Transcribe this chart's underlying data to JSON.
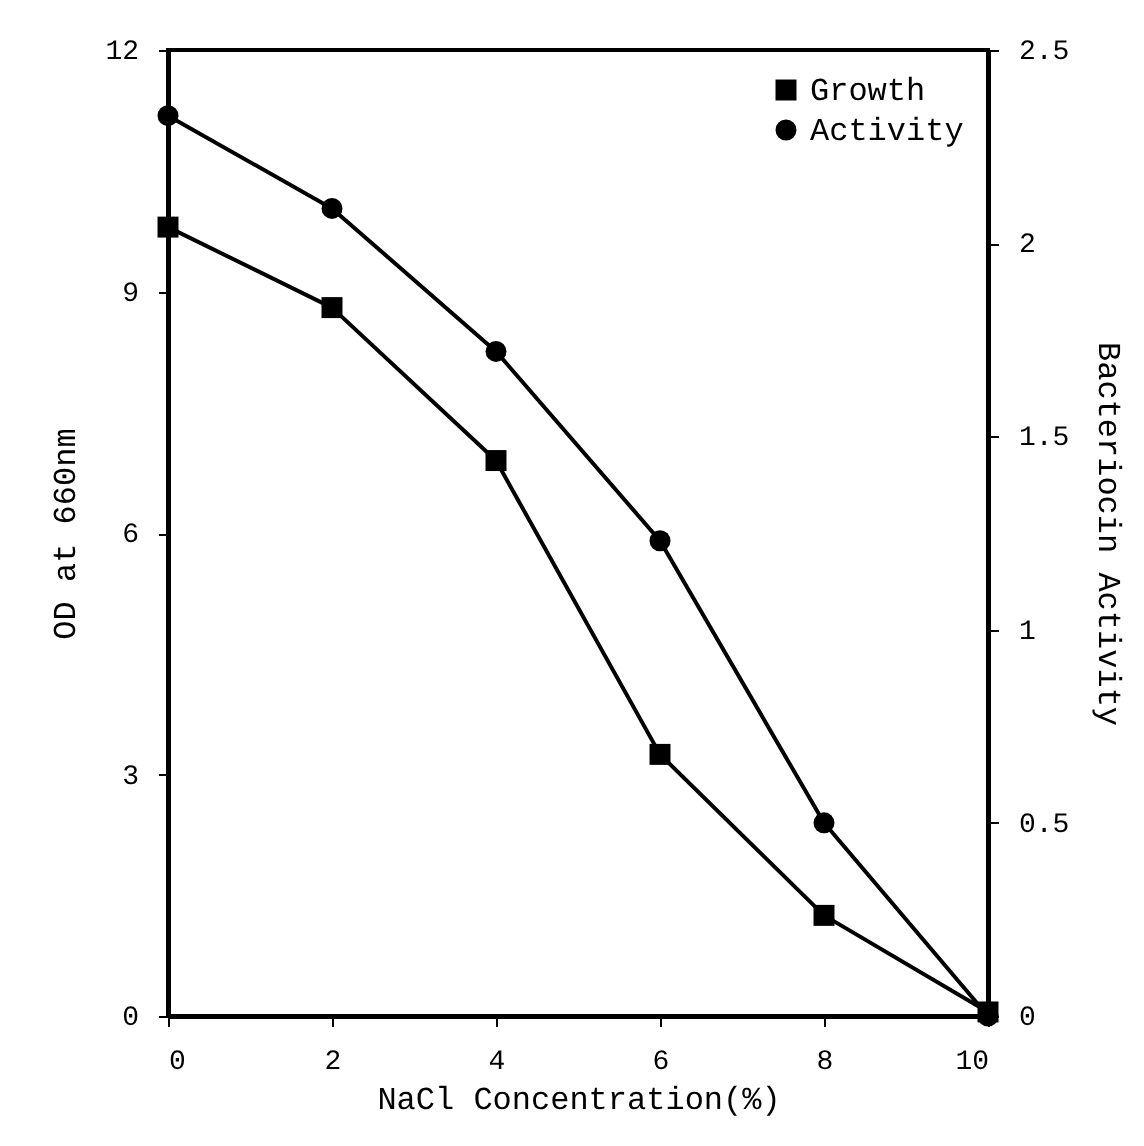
{
  "chart_data": {
    "type": "line",
    "xlabel": "NaCl Concentration(%)",
    "ylabel": "OD at 660nm",
    "y2label": "Bacteriocin Activity",
    "x": [
      0,
      2,
      4,
      6,
      8,
      10
    ],
    "xlim": [
      0,
      10
    ],
    "xticks": [
      0,
      2,
      4,
      6,
      8,
      10
    ],
    "ylim": [
      0,
      12
    ],
    "yticks": [
      0,
      3,
      6,
      9,
      12
    ],
    "y2lim": [
      0,
      2.5
    ],
    "y2ticks": [
      0,
      0.5,
      1,
      1.5,
      2,
      2.5
    ],
    "legend": "top right",
    "grid": false,
    "series": [
      {
        "name": "Growth",
        "color": "#000000",
        "marker": "square",
        "values": [
          9.8,
          8.8,
          6.9,
          3.25,
          1.25,
          0.05
        ]
      },
      {
        "name": "Activity",
        "color": "#000000",
        "marker": "circle",
        "axis": "y2",
        "values": [
          2.33,
          2.09,
          1.72,
          1.23,
          0.5,
          0
        ]
      }
    ]
  }
}
